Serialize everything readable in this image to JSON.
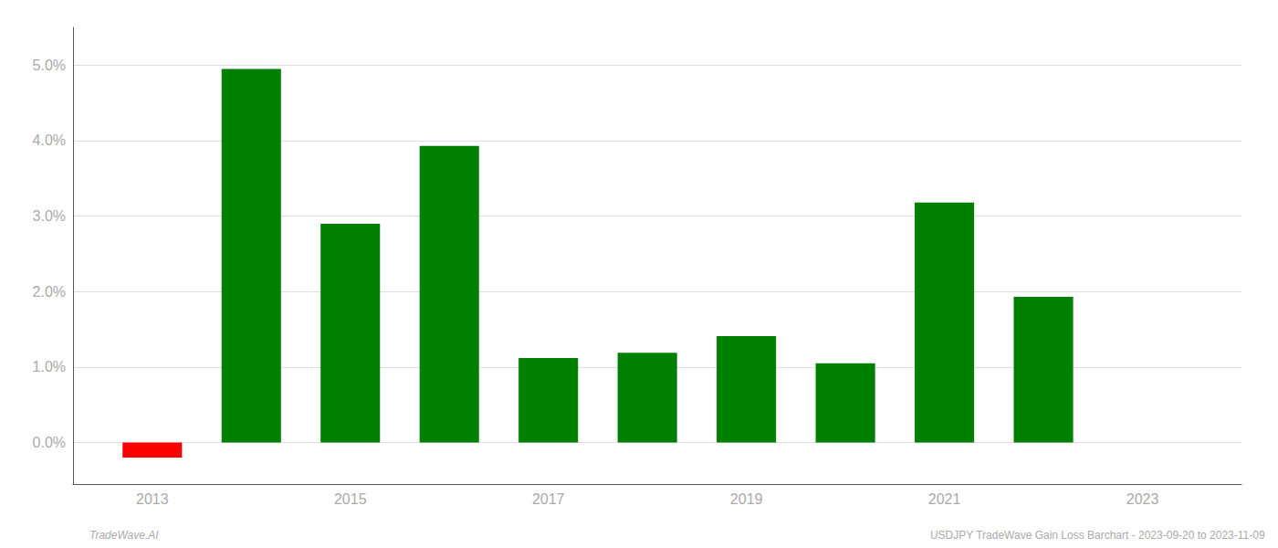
{
  "chart_data": {
    "type": "bar",
    "x": [
      2013,
      2014,
      2015,
      2016,
      2017,
      2018,
      2019,
      2020,
      2021,
      2022
    ],
    "values": [
      -0.2,
      4.95,
      2.9,
      3.93,
      1.12,
      1.19,
      1.41,
      1.05,
      3.18,
      1.93
    ],
    "colors": [
      "#ff0000",
      "#008000",
      "#008000",
      "#008000",
      "#008000",
      "#008000",
      "#008000",
      "#008000",
      "#008000",
      "#008000"
    ],
    "xlim": [
      2012.2,
      2024.0
    ],
    "xticks": [
      2013,
      2015,
      2017,
      2019,
      2021,
      2023
    ],
    "ylim": [
      -0.55,
      5.5
    ],
    "yticks": [
      {
        "value": 0.0,
        "label": "0.0%"
      },
      {
        "value": 1.0,
        "label": "1.0%"
      },
      {
        "value": 2.0,
        "label": "2.0%"
      },
      {
        "value": 3.0,
        "label": "3.0%"
      },
      {
        "value": 4.0,
        "label": "4.0%"
      },
      {
        "value": 5.0,
        "label": "5.0%"
      }
    ],
    "grid": true,
    "annotations": [
      "TradeWave.AI",
      "USDJPY TradeWave Gain Loss Barchart - 2023-09-20 to 2023-11-09"
    ]
  }
}
